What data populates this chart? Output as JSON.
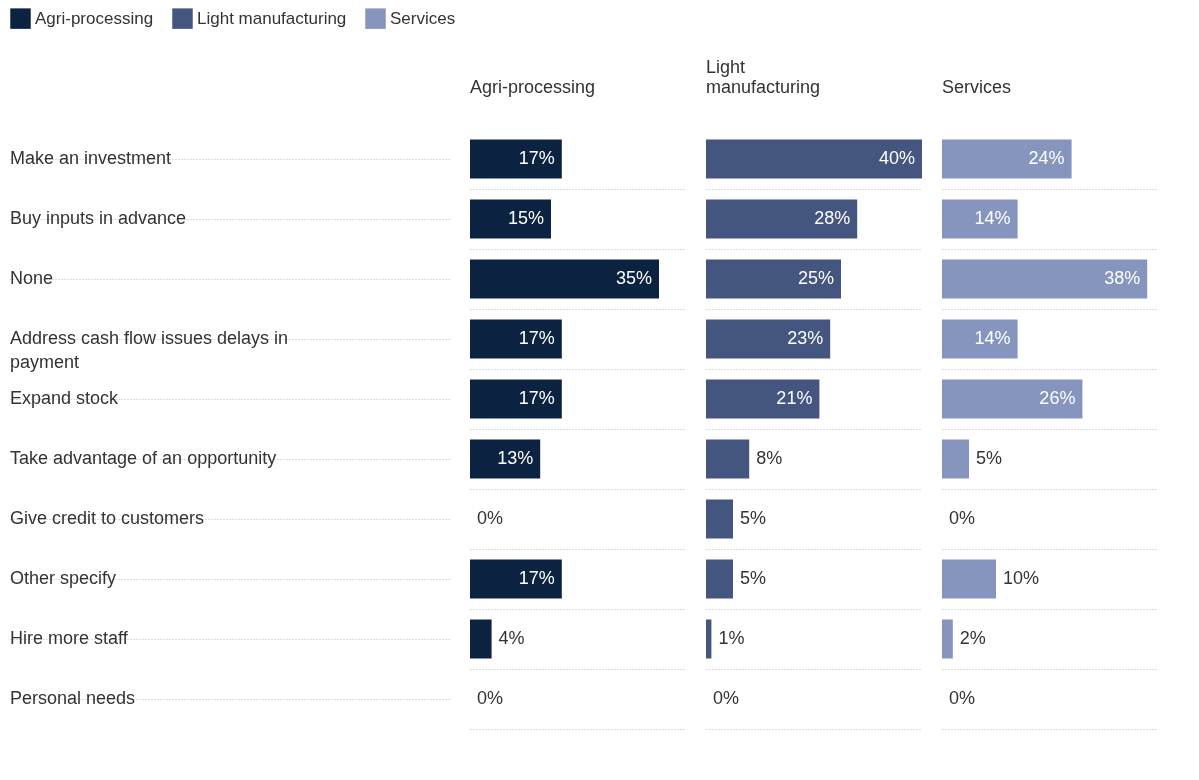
{
  "chart_data": [
    {
      "type": "bar",
      "orientation": "horizontal",
      "title": "Agri-processing",
      "legend": "top left",
      "grid": "y",
      "tick_labels": "y",
      "categories": [
        "Make an investment",
        "Buy inputs in advance",
        "None",
        "Address cash flow issues delays in payment",
        "Expand stock",
        "Take advantage of an opportunity",
        "Give credit to customers",
        "Other specify",
        "Hire more staff",
        "Personal needs"
      ],
      "series": [
        {
          "name": "Agri-processing",
          "color": "#0b2341",
          "values": [
            17,
            15,
            35,
            17,
            17,
            13,
            0,
            17,
            4,
            0
          ],
          "value_labels": [
            "17%",
            "15%",
            "35%",
            "17%",
            "17%",
            "13%",
            "0%",
            "17%",
            "4%",
            "0%"
          ]
        }
      ]
    },
    {
      "type": "bar",
      "orientation": "horizontal",
      "title": "Light manufacturing",
      "grid": "y",
      "tick_labels": false,
      "categories": [
        null,
        null,
        null,
        null,
        null,
        null,
        null,
        null,
        null,
        null
      ],
      "series": [
        {
          "name": "Light manufacturing",
          "color": "#44557f",
          "values": [
            40,
            28,
            25,
            23,
            21,
            8,
            5,
            5,
            1,
            0
          ],
          "value_labels": [
            "40%",
            "28%",
            "25%",
            "23%",
            "21%",
            "8%",
            "5%",
            "5%",
            "1%",
            "0%"
          ]
        }
      ]
    },
    {
      "type": "bar",
      "orientation": "horizontal",
      "title": "Services",
      "grid": "y",
      "tick_labels": false,
      "categories": [
        null,
        null,
        null,
        null,
        null,
        null,
        null,
        null,
        null,
        null
      ],
      "series": [
        {
          "name": "Services",
          "color": "#8595bd",
          "values": [
            24,
            14,
            38,
            14,
            26,
            5,
            0,
            10,
            2,
            0
          ],
          "value_labels": [
            "24%",
            "14%",
            "38%",
            "14%",
            "26%",
            "5%",
            "0%",
            "10%",
            "2%",
            "0%"
          ]
        }
      ]
    }
  ]
}
